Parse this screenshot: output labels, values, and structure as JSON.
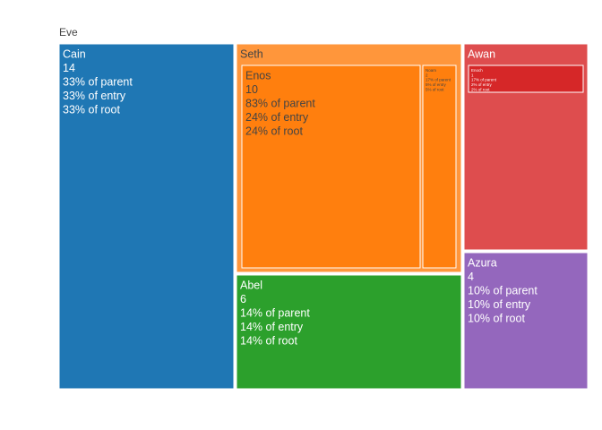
{
  "chart_data": {
    "type": "treemap",
    "root": "Eve",
    "nodes": [
      {
        "label": "Cain",
        "parent": "Eve",
        "value": 14,
        "color": "#1f77b4",
        "lines": [
          "Cain",
          "14",
          "33% of parent",
          "33% of entry",
          "33% of root"
        ]
      },
      {
        "label": "Seth",
        "parent": "Eve",
        "value": 12,
        "color": "#ff963b",
        "lines": [
          "Seth"
        ]
      },
      {
        "label": "Enos",
        "parent": "Seth",
        "value": 10,
        "color": "#ff7f0e",
        "lines": [
          "Enos",
          "10",
          "83% of parent",
          "24% of entry",
          "24% of root"
        ]
      },
      {
        "label": "Noam",
        "parent": "Seth",
        "value": 2,
        "color": "#ff7f0e",
        "lines": [
          "Noam",
          "2",
          "17% of parent",
          "5% of entry",
          "5% of root"
        ]
      },
      {
        "label": "Abel",
        "parent": "Eve",
        "value": 6,
        "color": "#2ca02c",
        "lines": [
          "Abel",
          "6",
          "14% of parent",
          "14% of entry",
          "14% of root"
        ]
      },
      {
        "label": "Awan",
        "parent": "Eve",
        "value": 6,
        "color": "#de4d4e",
        "lines": [
          "Awan"
        ]
      },
      {
        "label": "Enoch",
        "parent": "Awan",
        "value": 1,
        "color": "#d62728",
        "lines": [
          "Enoch",
          "1",
          "17% of parent",
          "2% of entry",
          "2% of root"
        ]
      },
      {
        "label": "Azura",
        "parent": "Eve",
        "value": 4,
        "color": "#9467bd",
        "lines": [
          "Azura",
          "4",
          "10% of parent",
          "10% of entry",
          "10% of root"
        ]
      }
    ]
  }
}
